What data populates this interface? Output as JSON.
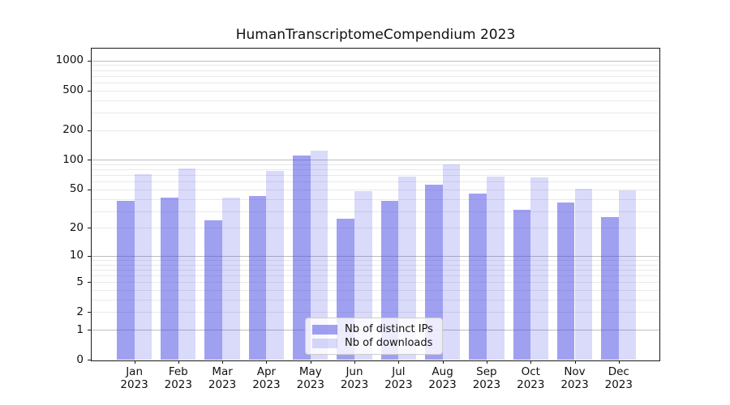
{
  "chart_data": {
    "type": "bar",
    "title": "HumanTranscriptomeCompendium 2023",
    "categories": [
      {
        "month": "Jan",
        "year": "2023"
      },
      {
        "month": "Feb",
        "year": "2023"
      },
      {
        "month": "Mar",
        "year": "2023"
      },
      {
        "month": "Apr",
        "year": "2023"
      },
      {
        "month": "May",
        "year": "2023"
      },
      {
        "month": "Jun",
        "year": "2023"
      },
      {
        "month": "Jul",
        "year": "2023"
      },
      {
        "month": "Aug",
        "year": "2023"
      },
      {
        "month": "Sep",
        "year": "2023"
      },
      {
        "month": "Oct",
        "year": "2023"
      },
      {
        "month": "Nov",
        "year": "2023"
      },
      {
        "month": "Dec",
        "year": "2023"
      }
    ],
    "series": [
      {
        "name": "Nb of distinct IPs",
        "key": "distinct-ips",
        "color": "rgba(72,72,228,0.52)",
        "values": [
          38,
          41,
          24,
          43,
          110,
          25,
          38,
          56,
          45,
          31,
          37,
          26
        ]
      },
      {
        "name": "Nb of downloads",
        "key": "downloads",
        "color": "rgba(72,72,228,0.20)",
        "values": [
          72,
          82,
          41,
          77,
          123,
          48,
          68,
          90,
          68,
          67,
          51,
          49
        ]
      }
    ],
    "y_axis": {
      "scale": "log1p",
      "tick_values": [
        0,
        1,
        2,
        5,
        10,
        20,
        50,
        100,
        200,
        500,
        1000
      ],
      "max": 1320,
      "major_grid_values": [
        1,
        10,
        100,
        1000
      ],
      "minor_grid_values": [
        2,
        3,
        4,
        5,
        6,
        7,
        8,
        9,
        20,
        30,
        40,
        50,
        60,
        70,
        80,
        90,
        200,
        300,
        400,
        500,
        600,
        700,
        800,
        900
      ],
      "major_grid_color": "#bdbdbd",
      "minor_grid_color": "#e9e9e9"
    },
    "legend": {
      "position": "lower center"
    },
    "grid": true
  }
}
